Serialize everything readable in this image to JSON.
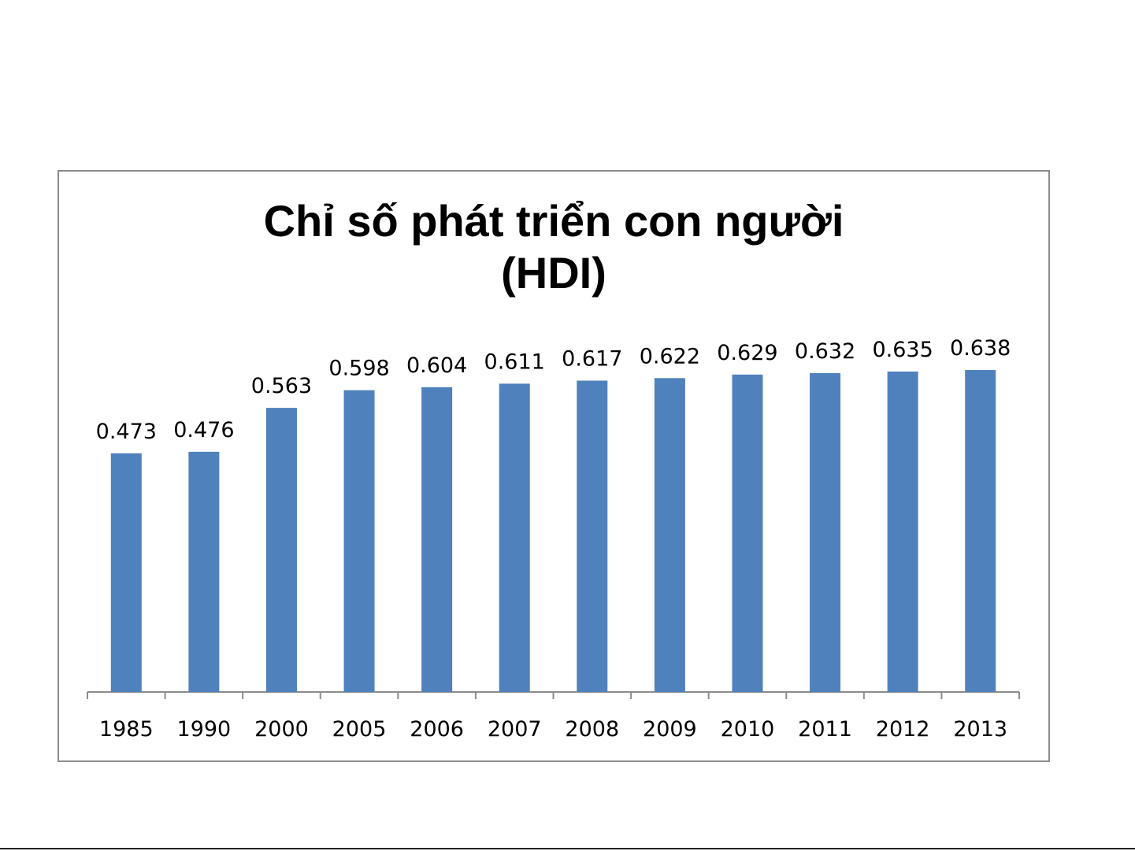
{
  "chart_data": {
    "type": "bar",
    "title": "Chỉ số phát triển con người",
    "subtitle": "(HDI)",
    "xlabel": "",
    "ylabel": "",
    "categories": [
      "1985",
      "1990",
      "2000",
      "2005",
      "2006",
      "2007",
      "2008",
      "2009",
      "2010",
      "2011",
      "2012",
      "2013"
    ],
    "values": [
      0.473,
      0.476,
      0.563,
      0.598,
      0.604,
      0.611,
      0.617,
      0.622,
      0.629,
      0.632,
      0.635,
      0.638
    ],
    "data_labels": [
      "0.473",
      "0.476",
      "0.563",
      "0.598",
      "0.604",
      "0.611",
      "0.617",
      "0.622",
      "0.629",
      "0.632",
      "0.635",
      "0.638"
    ],
    "ylim": [
      0,
      0.638
    ],
    "grid": false,
    "legend": "none",
    "bar_color": "#4F81BD"
  }
}
